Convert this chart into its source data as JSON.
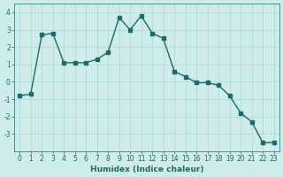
{
  "x": [
    0,
    1,
    2,
    3,
    4,
    5,
    6,
    7,
    8,
    9,
    10,
    11,
    12,
    13,
    14,
    15,
    16,
    17,
    18,
    19,
    20,
    21,
    22,
    23
  ],
  "y": [
    -0.8,
    -0.7,
    2.7,
    2.8,
    1.1,
    1.1,
    1.1,
    1.3,
    1.7,
    3.7,
    3.0,
    3.8,
    2.8,
    2.5,
    0.6,
    0.3,
    -0.05,
    -0.05,
    -0.2,
    -0.8,
    -1.8,
    -2.3,
    -3.5,
    -3.5
  ],
  "line_color": "#1a6b6b",
  "marker": "s",
  "markersize": 2.5,
  "linewidth": 1.0,
  "xlabel": "Humidex (Indice chaleur)",
  "xlim": [
    -0.5,
    23.5
  ],
  "ylim": [
    -4,
    4.5
  ],
  "yticks": [
    -3,
    -2,
    -1,
    0,
    1,
    2,
    3,
    4
  ],
  "xticks": [
    0,
    1,
    2,
    3,
    4,
    5,
    6,
    7,
    8,
    9,
    10,
    11,
    12,
    13,
    14,
    15,
    16,
    17,
    18,
    19,
    20,
    21,
    22,
    23
  ],
  "bg_color": "#ceecea",
  "grid_color": "#afd6d2",
  "tick_color": "#1a6b6b",
  "label_color": "#1a6b6b",
  "xlabel_fontsize": 6.5,
  "tick_fontsize": 5.5
}
